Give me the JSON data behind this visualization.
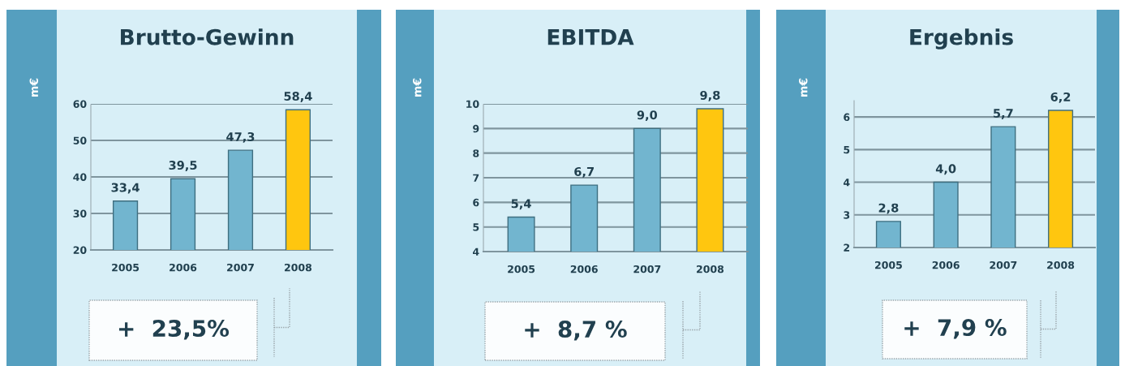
{
  "chart_data": [
    {
      "type": "bar",
      "title": "Brutto-Gewinn",
      "ylabel": "m€",
      "categories": [
        "2005",
        "2006",
        "2007",
        "2008"
      ],
      "values": [
        33.4,
        39.5,
        47.3,
        58.4
      ],
      "colors": [
        "#72b5cf",
        "#72b5cf",
        "#72b5cf",
        "#ffc60f"
      ],
      "value_labels": [
        "33,4",
        "39,5",
        "47,3",
        "58,4"
      ],
      "ylim": [
        20,
        60
      ],
      "yticks": [
        20,
        30,
        40,
        50,
        60
      ],
      "grid": "y",
      "annotations": [
        "+  23,5%"
      ]
    },
    {
      "type": "bar",
      "title": "EBITDA",
      "ylabel": "m€",
      "categories": [
        "2005",
        "2006",
        "2007",
        "2008"
      ],
      "values": [
        5.4,
        6.7,
        9.0,
        9.8
      ],
      "colors": [
        "#72b5cf",
        "#72b5cf",
        "#72b5cf",
        "#ffc60f"
      ],
      "value_labels": [
        "5,4",
        "6,7",
        "9,0",
        "9,8"
      ],
      "ylim": [
        4,
        10
      ],
      "yticks": [
        4,
        5,
        6,
        7,
        8,
        9,
        10
      ],
      "grid": "y",
      "annotations": [
        "+  8,7 %"
      ]
    },
    {
      "type": "bar",
      "title": "Ergebnis",
      "ylabel": "m€",
      "categories": [
        "2005",
        "2006",
        "2007",
        "2008"
      ],
      "values": [
        2.8,
        4.0,
        5.7,
        6.2
      ],
      "colors": [
        "#72b5cf",
        "#72b5cf",
        "#72b5cf",
        "#ffc60f"
      ],
      "value_labels": [
        "2,8",
        "4,0",
        "5,7",
        "6,2"
      ],
      "ylim": [
        2,
        6.5
      ],
      "yticks": [
        2,
        3,
        4,
        5,
        6
      ],
      "grid": "y",
      "annotations": [
        "+  7,9 %"
      ]
    }
  ]
}
